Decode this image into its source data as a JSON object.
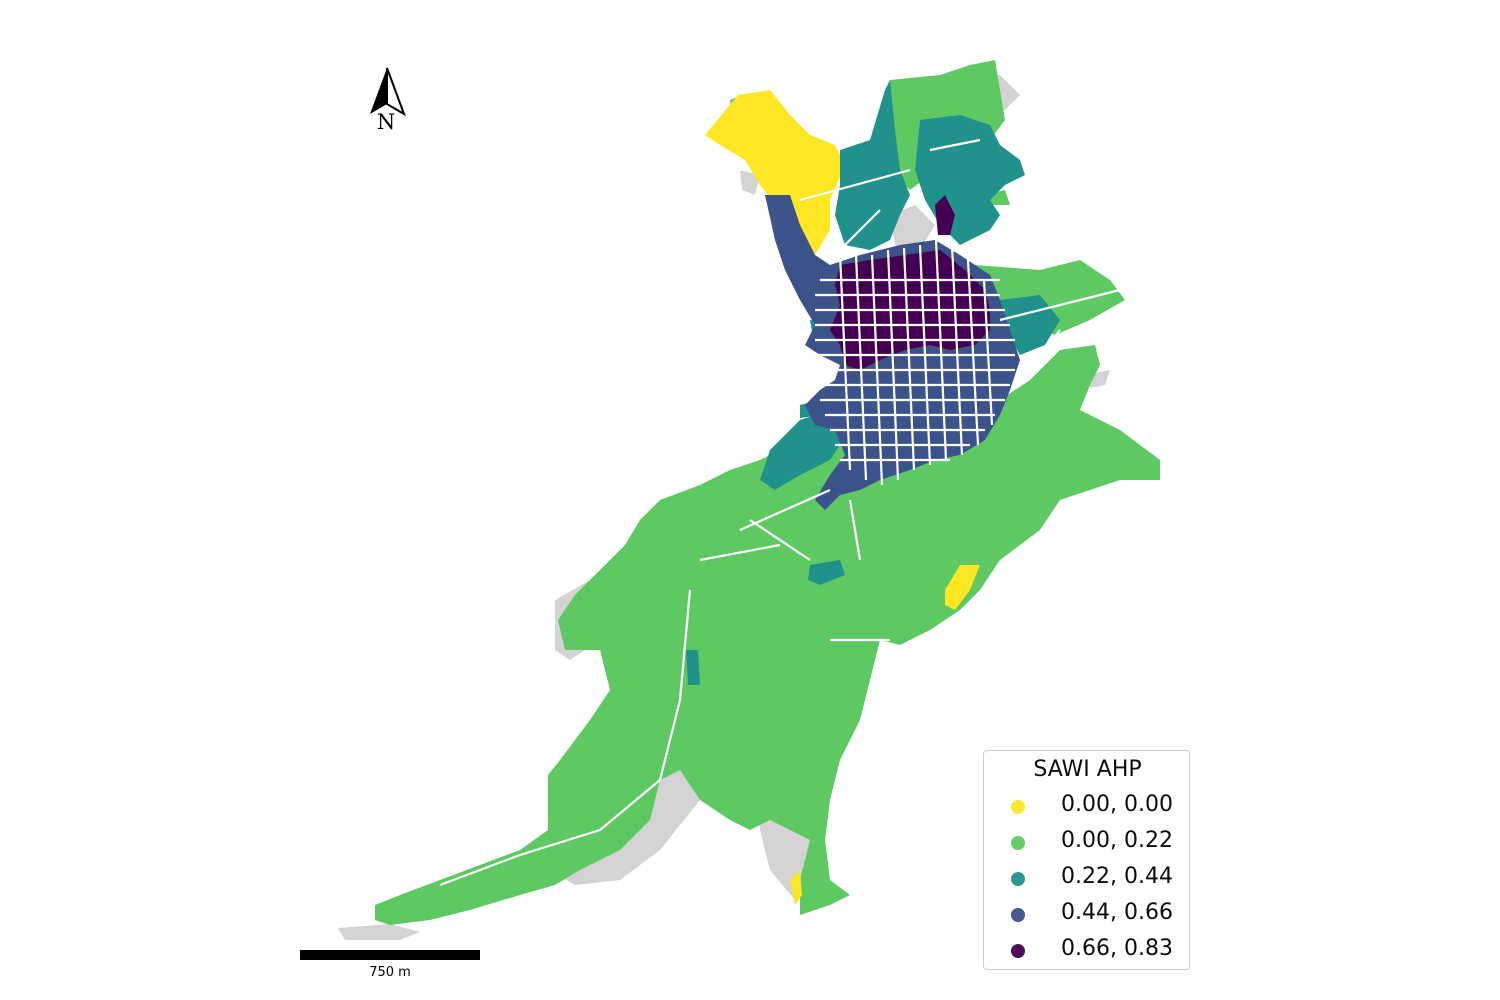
{
  "map": {
    "colors": {
      "class_0": "#fde725",
      "class_1": "#5ec962",
      "class_2": "#21918c",
      "class_3": "#3b528b",
      "class_4": "#440154",
      "no_data": "#d3d3d3",
      "street": "#ffffff"
    }
  },
  "legend": {
    "title": "SAWI AHP",
    "items": [
      {
        "label": "0.00, 0.00",
        "color": "#fde725"
      },
      {
        "label": "0.00, 0.22",
        "color": "#5ec962"
      },
      {
        "label": "0.22, 0.44",
        "color": "#21918c"
      },
      {
        "label": "0.44, 0.66",
        "color": "#3b528b"
      },
      {
        "label": "0.66, 0.83",
        "color": "#440154"
      }
    ]
  },
  "north_arrow": {
    "letter": "N",
    "icon": "north-arrow-icon"
  },
  "scale_bar": {
    "label": "750 m"
  }
}
